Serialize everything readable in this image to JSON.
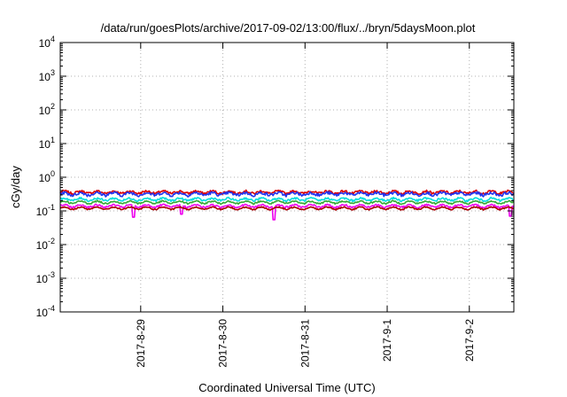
{
  "chart_data": {
    "type": "line",
    "title": "/data/run/goesPlots/archive/2017-09-02/13:00/flux/../bryn/5daysMoon.plot",
    "xlabel": "Coordinated Universal Time (UTC)",
    "ylabel": "cGy/day",
    "yscale": "log",
    "ylim_exponents": [
      -4,
      4
    ],
    "y_tick_labels": [
      {
        "base": "10",
        "exp": "-4"
      },
      {
        "base": "10",
        "exp": "-3"
      },
      {
        "base": "10",
        "exp": "-2"
      },
      {
        "base": "10",
        "exp": "-1"
      },
      {
        "base": "10",
        "exp": "0"
      },
      {
        "base": "10",
        "exp": "1"
      },
      {
        "base": "10",
        "exp": "2"
      },
      {
        "base": "10",
        "exp": "3"
      },
      {
        "base": "10",
        "exp": "4"
      }
    ],
    "xlim": [
      "2017-08-28 00:30",
      "2017-09-02 13:00"
    ],
    "x_ticks": [
      "2017-8-29",
      "2017-8-30",
      "2017-8-31",
      "2017-9-1",
      "2017-9-2"
    ],
    "grid": true,
    "legend": "none",
    "series": [
      {
        "color": "#dd0000",
        "level": 0.36,
        "variability": 0.08,
        "dips": []
      },
      {
        "color": "#2233ee",
        "level": 0.32,
        "variability": 0.1,
        "dips": []
      },
      {
        "color": "#00dddd",
        "level": 0.22,
        "variability": 0.07,
        "dips": []
      },
      {
        "color": "#33aa33",
        "level": 0.18,
        "variability": 0.05,
        "dips": []
      },
      {
        "color": "#ee00ee",
        "level": 0.14,
        "variability": 0.06,
        "dips": [
          {
            "time": "2017-08-28 22:00",
            "value": 0.065
          },
          {
            "time": "2017-08-29 12:00",
            "value": 0.08
          },
          {
            "time": "2017-08-30 15:00",
            "value": 0.055
          },
          {
            "time": "2017-09-02 12:00",
            "value": 0.07
          }
        ]
      },
      {
        "color": "#aa0000",
        "level": 0.12,
        "variability": 0.04,
        "dips": []
      }
    ]
  }
}
